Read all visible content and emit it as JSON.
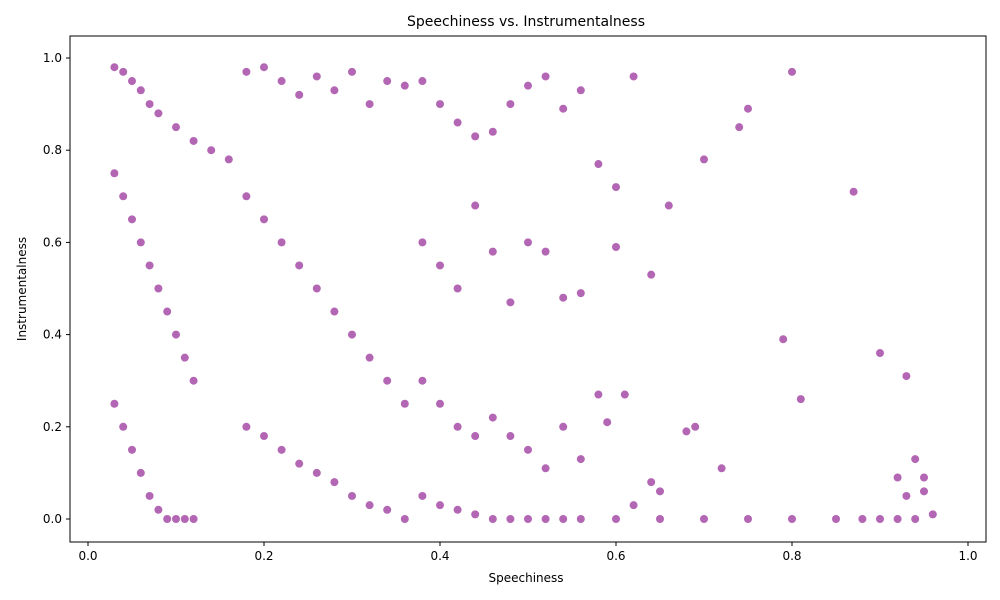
{
  "chart_data": {
    "type": "scatter",
    "title": "Speechiness vs. Instrumentalness",
    "xlabel": "Speechiness",
    "ylabel": "Instrumentalness",
    "xlim": [
      -0.0,
      1.0
    ],
    "ylim": [
      -0.05,
      1.05
    ],
    "xticks": [
      "0.0",
      "0.2",
      "0.4",
      "0.6",
      "0.8",
      "1.0"
    ],
    "yticks": [
      "0.0",
      "0.2",
      "0.4",
      "0.6",
      "0.8",
      "1.0"
    ],
    "grid": false,
    "legend": false,
    "marker_color": "#800080",
    "marker_alpha": 0.6,
    "series": [
      {
        "points": [
          [
            0.03,
            0.98
          ],
          [
            0.04,
            0.97
          ],
          [
            0.05,
            0.95
          ],
          [
            0.06,
            0.93
          ],
          [
            0.07,
            0.9
          ],
          [
            0.08,
            0.88
          ],
          [
            0.1,
            0.85
          ],
          [
            0.12,
            0.82
          ],
          [
            0.14,
            0.8
          ],
          [
            0.16,
            0.78
          ],
          [
            0.03,
            0.75
          ],
          [
            0.04,
            0.7
          ],
          [
            0.05,
            0.65
          ],
          [
            0.06,
            0.6
          ],
          [
            0.07,
            0.55
          ],
          [
            0.08,
            0.5
          ],
          [
            0.09,
            0.45
          ],
          [
            0.1,
            0.4
          ],
          [
            0.11,
            0.35
          ],
          [
            0.12,
            0.3
          ],
          [
            0.03,
            0.25
          ],
          [
            0.04,
            0.2
          ],
          [
            0.05,
            0.15
          ],
          [
            0.06,
            0.1
          ],
          [
            0.07,
            0.05
          ],
          [
            0.08,
            0.02
          ],
          [
            0.09,
            0.0
          ],
          [
            0.1,
            0.0
          ],
          [
            0.11,
            0.0
          ],
          [
            0.12,
            0.0
          ],
          [
            0.18,
            0.97
          ],
          [
            0.2,
            0.98
          ],
          [
            0.22,
            0.95
          ],
          [
            0.24,
            0.92
          ],
          [
            0.26,
            0.96
          ],
          [
            0.28,
            0.93
          ],
          [
            0.3,
            0.97
          ],
          [
            0.32,
            0.9
          ],
          [
            0.34,
            0.95
          ],
          [
            0.36,
            0.94
          ],
          [
            0.18,
            0.7
          ],
          [
            0.2,
            0.65
          ],
          [
            0.22,
            0.6
          ],
          [
            0.24,
            0.55
          ],
          [
            0.26,
            0.5
          ],
          [
            0.28,
            0.45
          ],
          [
            0.3,
            0.4
          ],
          [
            0.32,
            0.35
          ],
          [
            0.34,
            0.3
          ],
          [
            0.36,
            0.25
          ],
          [
            0.18,
            0.2
          ],
          [
            0.2,
            0.18
          ],
          [
            0.22,
            0.15
          ],
          [
            0.24,
            0.12
          ],
          [
            0.26,
            0.1
          ],
          [
            0.28,
            0.08
          ],
          [
            0.3,
            0.05
          ],
          [
            0.32,
            0.03
          ],
          [
            0.34,
            0.02
          ],
          [
            0.36,
            0.0
          ],
          [
            0.38,
            0.95
          ],
          [
            0.4,
            0.9
          ],
          [
            0.42,
            0.86
          ],
          [
            0.44,
            0.83
          ],
          [
            0.46,
            0.84
          ],
          [
            0.48,
            0.9
          ],
          [
            0.5,
            0.94
          ],
          [
            0.52,
            0.96
          ],
          [
            0.54,
            0.89
          ],
          [
            0.56,
            0.93
          ],
          [
            0.58,
            0.77
          ],
          [
            0.6,
            0.72
          ],
          [
            0.62,
            0.96
          ],
          [
            0.64,
            0.53
          ],
          [
            0.66,
            0.68
          ],
          [
            0.7,
            0.78
          ],
          [
            0.74,
            0.85
          ],
          [
            0.75,
            0.89
          ],
          [
            0.79,
            0.39
          ],
          [
            0.8,
            0.97
          ],
          [
            0.81,
            0.26
          ],
          [
            0.87,
            0.71
          ],
          [
            0.9,
            0.36
          ],
          [
            0.93,
            0.31
          ],
          [
            0.92,
            0.09
          ],
          [
            0.93,
            0.05
          ],
          [
            0.94,
            0.13
          ],
          [
            0.95,
            0.09
          ],
          [
            0.95,
            0.06
          ],
          [
            0.96,
            0.01
          ],
          [
            0.38,
            0.6
          ],
          [
            0.4,
            0.55
          ],
          [
            0.42,
            0.5
          ],
          [
            0.44,
            0.68
          ],
          [
            0.46,
            0.58
          ],
          [
            0.48,
            0.47
          ],
          [
            0.5,
            0.6
          ],
          [
            0.52,
            0.58
          ],
          [
            0.54,
            0.48
          ],
          [
            0.56,
            0.49
          ],
          [
            0.38,
            0.3
          ],
          [
            0.4,
            0.25
          ],
          [
            0.42,
            0.2
          ],
          [
            0.44,
            0.18
          ],
          [
            0.46,
            0.22
          ],
          [
            0.48,
            0.18
          ],
          [
            0.5,
            0.15
          ],
          [
            0.52,
            0.11
          ],
          [
            0.54,
            0.2
          ],
          [
            0.56,
            0.13
          ],
          [
            0.38,
            0.05
          ],
          [
            0.4,
            0.03
          ],
          [
            0.42,
            0.02
          ],
          [
            0.44,
            0.01
          ],
          [
            0.46,
            0.0
          ],
          [
            0.48,
            0.0
          ],
          [
            0.5,
            0.0
          ],
          [
            0.52,
            0.0
          ],
          [
            0.54,
            0.0
          ],
          [
            0.56,
            0.0
          ],
          [
            0.58,
            0.27
          ],
          [
            0.59,
            0.21
          ],
          [
            0.6,
            0.59
          ],
          [
            0.61,
            0.27
          ],
          [
            0.62,
            0.03
          ],
          [
            0.64,
            0.08
          ],
          [
            0.65,
            0.06
          ],
          [
            0.68,
            0.19
          ],
          [
            0.69,
            0.2
          ],
          [
            0.72,
            0.11
          ],
          [
            0.6,
            0.0
          ],
          [
            0.65,
            0.0
          ],
          [
            0.7,
            0.0
          ],
          [
            0.75,
            0.0
          ],
          [
            0.8,
            0.0
          ],
          [
            0.85,
            0.0
          ],
          [
            0.88,
            0.0
          ],
          [
            0.9,
            0.0
          ],
          [
            0.92,
            0.0
          ],
          [
            0.94,
            0.0
          ]
        ]
      }
    ]
  }
}
